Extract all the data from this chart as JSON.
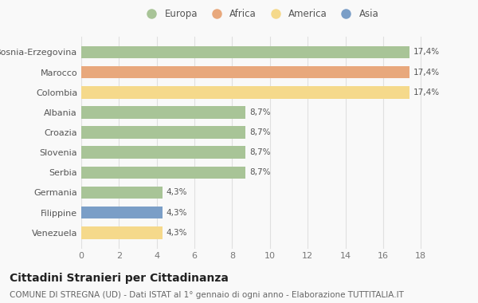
{
  "categories": [
    "Bosnia-Erzegovina",
    "Marocco",
    "Colombia",
    "Albania",
    "Croazia",
    "Slovenia",
    "Serbia",
    "Germania",
    "Filippine",
    "Venezuela"
  ],
  "values": [
    17.4,
    17.4,
    17.4,
    8.7,
    8.7,
    8.7,
    8.7,
    4.3,
    4.3,
    4.3
  ],
  "labels": [
    "17,4%",
    "17,4%",
    "17,4%",
    "8,7%",
    "8,7%",
    "8,7%",
    "8,7%",
    "4,3%",
    "4,3%",
    "4,3%"
  ],
  "bar_colors": [
    "#a8c497",
    "#e8a87c",
    "#f5d98b",
    "#a8c497",
    "#a8c497",
    "#a8c497",
    "#a8c497",
    "#a8c497",
    "#7a9ec7",
    "#f5d98b"
  ],
  "legend_labels": [
    "Europa",
    "Africa",
    "America",
    "Asia"
  ],
  "legend_colors": [
    "#a8c497",
    "#e8a87c",
    "#f5d98b",
    "#7a9ec7"
  ],
  "title": "Cittadini Stranieri per Cittadinanza",
  "subtitle": "COMUNE DI STREGNA (UD) - Dati ISTAT al 1° gennaio di ogni anno - Elaborazione TUTTITALIA.IT",
  "xlim": [
    0,
    19
  ],
  "xticks": [
    0,
    2,
    4,
    6,
    8,
    10,
    12,
    14,
    16,
    18
  ],
  "background_color": "#f9f9f9",
  "grid_color": "#e0e0e0",
  "bar_label_fontsize": 7.5,
  "title_fontsize": 10,
  "subtitle_fontsize": 7.5,
  "ytick_fontsize": 8,
  "xtick_fontsize": 8
}
